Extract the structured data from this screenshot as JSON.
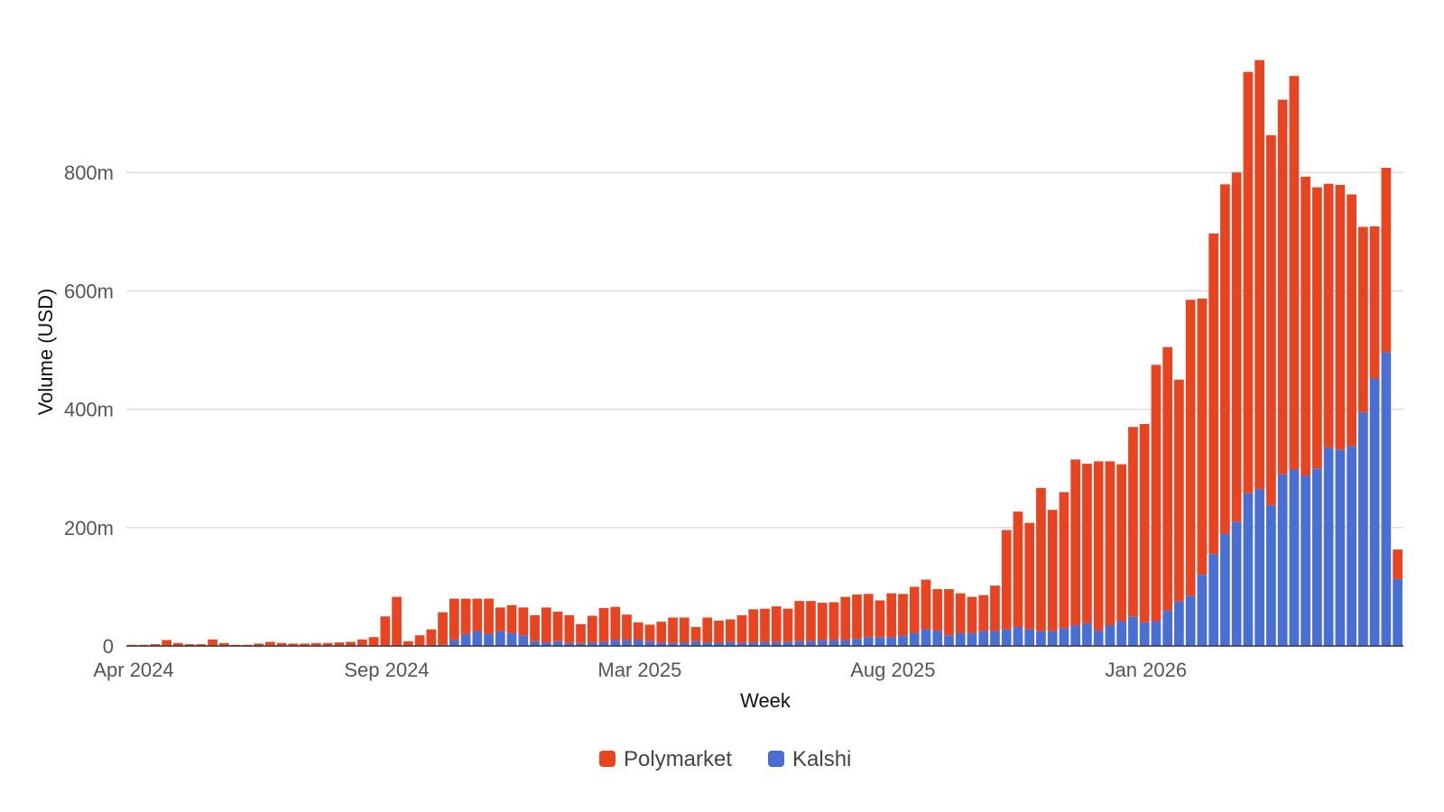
{
  "chart_data": {
    "type": "bar",
    "stacked": true,
    "xlabel": "Week",
    "ylabel": "Volume (USD)",
    "ylim": [
      0,
      1000000000
    ],
    "y_ticks": [
      0,
      200000000,
      400000000,
      600000000,
      800000000
    ],
    "y_tick_labels": [
      "0",
      "200m",
      "400m",
      "600m",
      "800m"
    ],
    "x_ticks": [
      {
        "label": "Apr 2024",
        "index": 0
      },
      {
        "label": "Sep 2024",
        "index": 22
      },
      {
        "label": "Mar 2025",
        "index": 44
      },
      {
        "label": "Aug 2025",
        "index": 66
      },
      {
        "label": "Jan 2026",
        "index": 88
      }
    ],
    "grid": true,
    "legend_position": "bottom",
    "x": [
      "2024-04-01",
      "2024-04-08",
      "2024-04-15",
      "2024-04-22",
      "2024-04-29",
      "2024-05-06",
      "2024-05-13",
      "2024-05-20",
      "2024-05-27",
      "2024-06-03",
      "2024-06-10",
      "2024-06-17",
      "2024-06-24",
      "2024-07-01",
      "2024-07-08",
      "2024-07-15",
      "2024-07-22",
      "2024-07-29",
      "2024-08-05",
      "2024-08-12",
      "2024-08-19",
      "2024-08-26",
      "2024-09-02",
      "2024-09-09",
      "2024-09-16",
      "2024-09-23",
      "2024-09-30",
      "2024-10-07",
      "2024-10-14",
      "2024-10-21",
      "2024-10-28",
      "2024-11-04",
      "2024-11-11",
      "2024-11-18",
      "2024-11-25",
      "2024-12-02",
      "2024-12-09",
      "2024-12-16",
      "2024-12-23",
      "2024-12-30",
      "2025-01-06",
      "2025-01-13",
      "2025-01-20",
      "2025-01-27",
      "2025-02-03",
      "2025-02-10",
      "2025-02-17",
      "2025-02-24",
      "2025-03-03",
      "2025-03-10",
      "2025-03-17",
      "2025-03-24",
      "2025-03-31",
      "2025-04-07",
      "2025-04-14",
      "2025-04-21",
      "2025-04-28",
      "2025-05-05",
      "2025-05-12",
      "2025-05-19",
      "2025-05-26",
      "2025-06-02",
      "2025-06-09",
      "2025-06-16",
      "2025-06-23",
      "2025-06-30",
      "2025-07-07",
      "2025-07-14",
      "2025-07-21",
      "2025-07-28",
      "2025-08-04",
      "2025-08-11",
      "2025-08-18",
      "2025-08-25",
      "2025-09-01",
      "2025-09-08",
      "2025-09-15",
      "2025-09-22",
      "2025-09-29",
      "2025-10-06",
      "2025-10-13",
      "2025-10-20",
      "2025-10-27",
      "2025-11-03",
      "2025-11-10",
      "2025-11-17",
      "2025-11-24",
      "2025-12-01",
      "2025-12-08",
      "2025-12-15",
      "2025-12-22",
      "2025-12-29",
      "2026-01-05",
      "2026-01-12",
      "2026-01-19",
      "2026-01-26",
      "2026-02-02",
      "2026-02-09",
      "2026-02-16",
      "2026-02-23",
      "2026-03-02",
      "2026-03-09",
      "2026-03-16",
      "2026-03-23",
      "2026-03-30",
      "2026-04-06",
      "2026-04-13",
      "2026-04-20",
      "2026-04-27",
      "2026-05-04",
      "2026-05-11"
    ],
    "series": [
      {
        "name": "Kalshi",
        "color": "#4a6fd4",
        "values": [
          0,
          0,
          0,
          0,
          0,
          0,
          0,
          0,
          0,
          0,
          0,
          0,
          0,
          0,
          0,
          0,
          0,
          0,
          0,
          0,
          0,
          0,
          0,
          0,
          0,
          0,
          0,
          2000000,
          10000000,
          20000000,
          25000000,
          20000000,
          25000000,
          22000000,
          18000000,
          8000000,
          6000000,
          8000000,
          5000000,
          5000000,
          6000000,
          7000000,
          10000000,
          10000000,
          10000000,
          8000000,
          6000000,
          5000000,
          6000000,
          8000000,
          6000000,
          6000000,
          7000000,
          6000000,
          6000000,
          7000000,
          7000000,
          7000000,
          8000000,
          8000000,
          10000000,
          10000000,
          10000000,
          12000000,
          15000000,
          15000000,
          15000000,
          18000000,
          22000000,
          28000000,
          26000000,
          18000000,
          22000000,
          22000000,
          25000000,
          25000000,
          28000000,
          32000000,
          28000000,
          25000000,
          25000000,
          30000000,
          35000000,
          38000000,
          26000000,
          35000000,
          42000000,
          50000000,
          40000000,
          42000000,
          60000000,
          75000000,
          85000000,
          120000000,
          155000000,
          190000000,
          210000000,
          258000000,
          265000000,
          238000000,
          290000000,
          298000000,
          288000000,
          300000000,
          335000000,
          332000000,
          338000000,
          395000000,
          452000000,
          496000000,
          113000000
        ]
      },
      {
        "name": "Polymarket",
        "color": "#e84422",
        "values": [
          2000000,
          2000000,
          3000000,
          10000000,
          5000000,
          3000000,
          3000000,
          11000000,
          5000000,
          2000000,
          2000000,
          4000000,
          7000000,
          5000000,
          4000000,
          4000000,
          5000000,
          5000000,
          6000000,
          7000000,
          11000000,
          15000000,
          50000000,
          83000000,
          8000000,
          18000000,
          28000000,
          55000000,
          70000000,
          60000000,
          55000000,
          60000000,
          40000000,
          47000000,
          47000000,
          44000000,
          59000000,
          50000000,
          47000000,
          32000000,
          45000000,
          57000000,
          56000000,
          43000000,
          30000000,
          28000000,
          35000000,
          43000000,
          42000000,
          24000000,
          42000000,
          37000000,
          38000000,
          46000000,
          56000000,
          56000000,
          60000000,
          56000000,
          68000000,
          68000000,
          63000000,
          64000000,
          73000000,
          75000000,
          73000000,
          62000000,
          74000000,
          70000000,
          78000000,
          84000000,
          70000000,
          78000000,
          67000000,
          61000000,
          61000000,
          77000000,
          168000000,
          195000000,
          180000000,
          242000000,
          205000000,
          230000000,
          280000000,
          270000000,
          286000000,
          277000000,
          265000000,
          320000000,
          335000000,
          433000000,
          445000000,
          375000000,
          500000000,
          467000000,
          542000000,
          590000000,
          590000000,
          712000000,
          725000000,
          625000000,
          633000000,
          665000000,
          505000000,
          475000000,
          446000000,
          447000000,
          425000000,
          313000000,
          257000000,
          312000000,
          50000000
        ]
      }
    ]
  }
}
